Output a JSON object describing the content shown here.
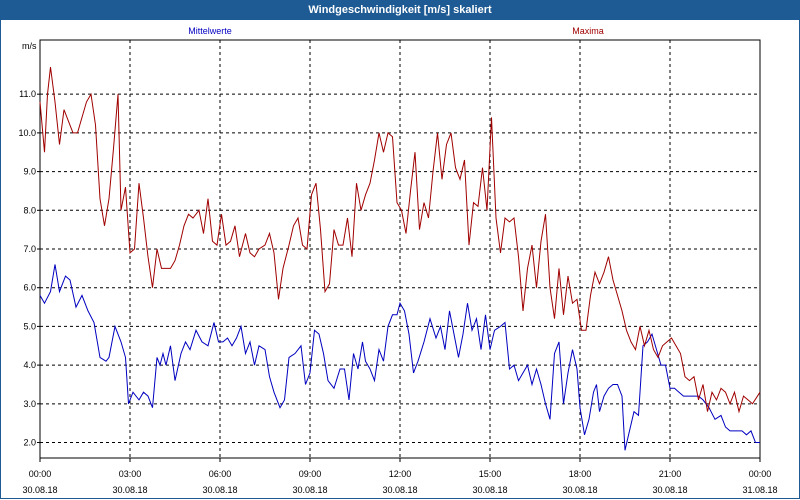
{
  "window": {
    "title": "Windgeschwindigkeit [m/s] skaliert"
  },
  "chart_data": {
    "type": "line",
    "title": "Windgeschwindigkeit [m/s] skaliert",
    "ylabel": "m/s",
    "xlabel": "",
    "ylim": [
      1.6,
      12.4
    ],
    "xlim_hours": [
      0,
      24
    ],
    "grid": true,
    "yticks": [
      "2.0",
      "3.0",
      "4.0",
      "5.0",
      "6.0",
      "7.0",
      "8.0",
      "9.0",
      "10.0",
      "11.0"
    ],
    "xticks": [
      {
        "time": "00:00",
        "date": "30.08.18"
      },
      {
        "time": "03:00",
        "date": "30.08.18"
      },
      {
        "time": "06:00",
        "date": "30.08.18"
      },
      {
        "time": "09:00",
        "date": "30.08.18"
      },
      {
        "time": "12:00",
        "date": "30.08.18"
      },
      {
        "time": "15:00",
        "date": "30.08.18"
      },
      {
        "time": "18:00",
        "date": "30.08.18"
      },
      {
        "time": "21:00",
        "date": "30.08.18"
      },
      {
        "time": "00:00",
        "date": "31.08.18"
      }
    ],
    "series": [
      {
        "name": "Mittelwerte",
        "color": "#0000c0",
        "points": [
          [
            0.0,
            5.8
          ],
          [
            0.15,
            5.6
          ],
          [
            0.35,
            5.9
          ],
          [
            0.5,
            6.6
          ],
          [
            0.65,
            5.9
          ],
          [
            0.85,
            6.3
          ],
          [
            1.0,
            6.2
          ],
          [
            1.2,
            5.5
          ],
          [
            1.4,
            5.8
          ],
          [
            1.6,
            5.4
          ],
          [
            1.8,
            5.1
          ],
          [
            2.0,
            4.2
          ],
          [
            2.2,
            4.1
          ],
          [
            2.3,
            4.2
          ],
          [
            2.5,
            5.0
          ],
          [
            2.7,
            4.6
          ],
          [
            2.85,
            4.2
          ],
          [
            2.95,
            3.0
          ],
          [
            3.1,
            3.3
          ],
          [
            3.3,
            3.1
          ],
          [
            3.45,
            3.3
          ],
          [
            3.6,
            3.2
          ],
          [
            3.75,
            2.9
          ],
          [
            3.9,
            4.2
          ],
          [
            4.0,
            4.0
          ],
          [
            4.1,
            4.3
          ],
          [
            4.2,
            4.0
          ],
          [
            4.35,
            4.5
          ],
          [
            4.5,
            3.6
          ],
          [
            4.7,
            4.3
          ],
          [
            4.85,
            4.6
          ],
          [
            5.0,
            4.4
          ],
          [
            5.2,
            4.9
          ],
          [
            5.4,
            4.6
          ],
          [
            5.6,
            4.5
          ],
          [
            5.8,
            5.1
          ],
          [
            5.95,
            4.6
          ],
          [
            6.1,
            4.6
          ],
          [
            6.25,
            4.7
          ],
          [
            6.4,
            4.5
          ],
          [
            6.55,
            4.7
          ],
          [
            6.7,
            5.0
          ],
          [
            6.85,
            4.3
          ],
          [
            7.0,
            4.6
          ],
          [
            7.15,
            4.0
          ],
          [
            7.3,
            4.5
          ],
          [
            7.5,
            4.4
          ],
          [
            7.65,
            3.7
          ],
          [
            7.8,
            3.3
          ],
          [
            8.0,
            2.9
          ],
          [
            8.15,
            3.1
          ],
          [
            8.3,
            4.2
          ],
          [
            8.5,
            4.3
          ],
          [
            8.7,
            4.5
          ],
          [
            8.85,
            3.5
          ],
          [
            9.0,
            3.8
          ],
          [
            9.15,
            4.9
          ],
          [
            9.3,
            4.8
          ],
          [
            9.45,
            4.3
          ],
          [
            9.6,
            3.6
          ],
          [
            9.8,
            3.4
          ],
          [
            10.0,
            3.9
          ],
          [
            10.15,
            3.9
          ],
          [
            10.3,
            3.1
          ],
          [
            10.45,
            4.3
          ],
          [
            10.6,
            3.9
          ],
          [
            10.75,
            4.6
          ],
          [
            10.85,
            4.1
          ],
          [
            11.0,
            3.9
          ],
          [
            11.15,
            3.6
          ],
          [
            11.3,
            4.4
          ],
          [
            11.45,
            4.1
          ],
          [
            11.6,
            5.0
          ],
          [
            11.75,
            5.3
          ],
          [
            11.9,
            5.3
          ],
          [
            12.0,
            5.6
          ],
          [
            12.15,
            5.4
          ],
          [
            12.3,
            4.8
          ],
          [
            12.45,
            3.8
          ],
          [
            12.6,
            4.1
          ],
          [
            12.8,
            4.6
          ],
          [
            13.0,
            5.2
          ],
          [
            13.2,
            4.7
          ],
          [
            13.35,
            5.0
          ],
          [
            13.5,
            4.4
          ],
          [
            13.65,
            5.4
          ],
          [
            13.8,
            4.8
          ],
          [
            13.95,
            4.2
          ],
          [
            14.1,
            4.8
          ],
          [
            14.25,
            5.6
          ],
          [
            14.4,
            4.9
          ],
          [
            14.55,
            5.2
          ],
          [
            14.7,
            4.4
          ],
          [
            14.85,
            5.3
          ],
          [
            15.0,
            4.4
          ],
          [
            15.15,
            4.9
          ],
          [
            15.35,
            5.0
          ],
          [
            15.5,
            5.1
          ],
          [
            15.65,
            3.9
          ],
          [
            15.8,
            4.0
          ],
          [
            15.95,
            3.6
          ],
          [
            16.1,
            3.8
          ],
          [
            16.25,
            4.0
          ],
          [
            16.4,
            3.5
          ],
          [
            16.55,
            3.9
          ],
          [
            16.7,
            3.5
          ],
          [
            16.85,
            3.0
          ],
          [
            17.0,
            2.6
          ],
          [
            17.15,
            4.3
          ],
          [
            17.3,
            4.6
          ],
          [
            17.45,
            3.0
          ],
          [
            17.6,
            3.8
          ],
          [
            17.75,
            4.4
          ],
          [
            17.9,
            3.9
          ],
          [
            18.0,
            2.9
          ],
          [
            18.15,
            2.2
          ],
          [
            18.3,
            2.6
          ],
          [
            18.45,
            3.3
          ],
          [
            18.55,
            3.5
          ],
          [
            18.65,
            2.8
          ],
          [
            18.8,
            3.2
          ],
          [
            18.95,
            3.4
          ],
          [
            19.1,
            3.5
          ],
          [
            19.25,
            3.5
          ],
          [
            19.4,
            3.2
          ],
          [
            19.5,
            1.8
          ],
          [
            19.65,
            2.3
          ],
          [
            19.8,
            2.8
          ],
          [
            19.95,
            2.7
          ],
          [
            20.1,
            4.5
          ],
          [
            20.25,
            4.6
          ],
          [
            20.4,
            4.8
          ],
          [
            20.55,
            4.4
          ],
          [
            20.7,
            4.0
          ],
          [
            20.85,
            4.0
          ],
          [
            21.0,
            3.4
          ],
          [
            21.15,
            3.4
          ],
          [
            21.3,
            3.3
          ],
          [
            21.45,
            3.2
          ],
          [
            21.6,
            3.2
          ],
          [
            21.8,
            3.2
          ],
          [
            21.95,
            3.2
          ],
          [
            22.1,
            3.1
          ],
          [
            22.3,
            2.9
          ],
          [
            22.5,
            2.6
          ],
          [
            22.7,
            2.7
          ],
          [
            22.85,
            2.4
          ],
          [
            23.0,
            2.3
          ],
          [
            23.2,
            2.3
          ],
          [
            23.4,
            2.3
          ],
          [
            23.55,
            2.2
          ],
          [
            23.7,
            2.3
          ],
          [
            23.85,
            2.0
          ],
          [
            24.0,
            2.0
          ]
        ]
      },
      {
        "name": "Maxima",
        "color": "#a00000",
        "points": [
          [
            0.0,
            10.8
          ],
          [
            0.15,
            9.5
          ],
          [
            0.25,
            11.0
          ],
          [
            0.35,
            11.7
          ],
          [
            0.5,
            10.8
          ],
          [
            0.65,
            9.7
          ],
          [
            0.8,
            10.6
          ],
          [
            0.95,
            10.3
          ],
          [
            1.1,
            10.0
          ],
          [
            1.25,
            10.0
          ],
          [
            1.4,
            10.4
          ],
          [
            1.55,
            10.8
          ],
          [
            1.7,
            11.0
          ],
          [
            1.85,
            10.2
          ],
          [
            2.0,
            8.3
          ],
          [
            2.15,
            7.6
          ],
          [
            2.3,
            8.3
          ],
          [
            2.45,
            9.6
          ],
          [
            2.6,
            11.0
          ],
          [
            2.7,
            8.0
          ],
          [
            2.85,
            8.6
          ],
          [
            3.0,
            6.9
          ],
          [
            3.15,
            7.0
          ],
          [
            3.3,
            8.7
          ],
          [
            3.45,
            7.8
          ],
          [
            3.6,
            6.8
          ],
          [
            3.75,
            6.0
          ],
          [
            3.9,
            7.0
          ],
          [
            4.05,
            6.5
          ],
          [
            4.2,
            6.5
          ],
          [
            4.35,
            6.5
          ],
          [
            4.5,
            6.7
          ],
          [
            4.65,
            7.1
          ],
          [
            4.8,
            7.6
          ],
          [
            4.95,
            7.9
          ],
          [
            5.1,
            7.8
          ],
          [
            5.3,
            8.0
          ],
          [
            5.45,
            7.4
          ],
          [
            5.6,
            8.3
          ],
          [
            5.75,
            7.2
          ],
          [
            5.9,
            7.1
          ],
          [
            6.05,
            7.9
          ],
          [
            6.2,
            7.1
          ],
          [
            6.35,
            7.2
          ],
          [
            6.5,
            7.6
          ],
          [
            6.65,
            6.8
          ],
          [
            6.85,
            7.4
          ],
          [
            7.0,
            6.9
          ],
          [
            7.15,
            6.8
          ],
          [
            7.3,
            7.0
          ],
          [
            7.5,
            7.1
          ],
          [
            7.65,
            7.4
          ],
          [
            7.8,
            6.9
          ],
          [
            7.95,
            5.7
          ],
          [
            8.1,
            6.5
          ],
          [
            8.3,
            7.1
          ],
          [
            8.45,
            7.6
          ],
          [
            8.6,
            7.8
          ],
          [
            8.75,
            7.1
          ],
          [
            8.9,
            7.0
          ],
          [
            9.05,
            8.4
          ],
          [
            9.2,
            8.7
          ],
          [
            9.35,
            7.5
          ],
          [
            9.5,
            5.9
          ],
          [
            9.65,
            6.1
          ],
          [
            9.8,
            7.5
          ],
          [
            9.95,
            7.1
          ],
          [
            10.1,
            7.1
          ],
          [
            10.25,
            7.8
          ],
          [
            10.4,
            6.8
          ],
          [
            10.55,
            8.7
          ],
          [
            10.7,
            8.0
          ],
          [
            10.85,
            8.4
          ],
          [
            11.0,
            8.7
          ],
          [
            11.15,
            9.3
          ],
          [
            11.3,
            10.0
          ],
          [
            11.45,
            9.5
          ],
          [
            11.6,
            10.0
          ],
          [
            11.75,
            9.9
          ],
          [
            11.9,
            8.2
          ],
          [
            12.05,
            8.0
          ],
          [
            12.2,
            7.4
          ],
          [
            12.35,
            8.5
          ],
          [
            12.5,
            9.5
          ],
          [
            12.65,
            7.5
          ],
          [
            12.8,
            8.2
          ],
          [
            12.95,
            7.8
          ],
          [
            13.1,
            9.0
          ],
          [
            13.25,
            10.0
          ],
          [
            13.4,
            8.8
          ],
          [
            13.55,
            9.7
          ],
          [
            13.7,
            10.0
          ],
          [
            13.85,
            9.1
          ],
          [
            14.0,
            8.8
          ],
          [
            14.15,
            9.3
          ],
          [
            14.3,
            7.1
          ],
          [
            14.45,
            8.2
          ],
          [
            14.6,
            8.1
          ],
          [
            14.75,
            9.1
          ],
          [
            14.9,
            8.0
          ],
          [
            15.05,
            10.4
          ],
          [
            15.2,
            7.8
          ],
          [
            15.35,
            6.9
          ],
          [
            15.5,
            7.8
          ],
          [
            15.65,
            7.7
          ],
          [
            15.8,
            7.8
          ],
          [
            15.95,
            6.8
          ],
          [
            16.1,
            5.4
          ],
          [
            16.25,
            6.5
          ],
          [
            16.4,
            7.1
          ],
          [
            16.55,
            6.0
          ],
          [
            16.7,
            7.2
          ],
          [
            16.85,
            7.9
          ],
          [
            17.0,
            6.0
          ],
          [
            17.15,
            5.2
          ],
          [
            17.3,
            6.5
          ],
          [
            17.45,
            5.3
          ],
          [
            17.6,
            6.3
          ],
          [
            17.75,
            5.6
          ],
          [
            17.9,
            5.7
          ],
          [
            18.05,
            4.9
          ],
          [
            18.2,
            4.9
          ],
          [
            18.35,
            5.8
          ],
          [
            18.5,
            6.4
          ],
          [
            18.65,
            6.1
          ],
          [
            18.8,
            6.4
          ],
          [
            18.95,
            6.8
          ],
          [
            19.1,
            6.2
          ],
          [
            19.25,
            5.8
          ],
          [
            19.4,
            5.4
          ],
          [
            19.55,
            4.9
          ],
          [
            19.7,
            4.6
          ],
          [
            19.85,
            4.4
          ],
          [
            20.0,
            5.0
          ],
          [
            20.15,
            4.5
          ],
          [
            20.3,
            4.9
          ],
          [
            20.45,
            4.4
          ],
          [
            20.6,
            4.2
          ],
          [
            20.75,
            4.5
          ],
          [
            20.9,
            4.6
          ],
          [
            21.05,
            4.7
          ],
          [
            21.2,
            4.5
          ],
          [
            21.35,
            4.3
          ],
          [
            21.5,
            3.7
          ],
          [
            21.65,
            3.6
          ],
          [
            21.8,
            3.7
          ],
          [
            21.95,
            3.1
          ],
          [
            22.1,
            3.5
          ],
          [
            22.25,
            2.8
          ],
          [
            22.4,
            3.3
          ],
          [
            22.55,
            3.1
          ],
          [
            22.7,
            3.4
          ],
          [
            22.85,
            3.3
          ],
          [
            23.0,
            3.0
          ],
          [
            23.15,
            3.3
          ],
          [
            23.3,
            2.8
          ],
          [
            23.45,
            3.2
          ],
          [
            23.6,
            3.1
          ],
          [
            23.75,
            3.0
          ],
          [
            24.0,
            3.3
          ]
        ]
      }
    ]
  }
}
